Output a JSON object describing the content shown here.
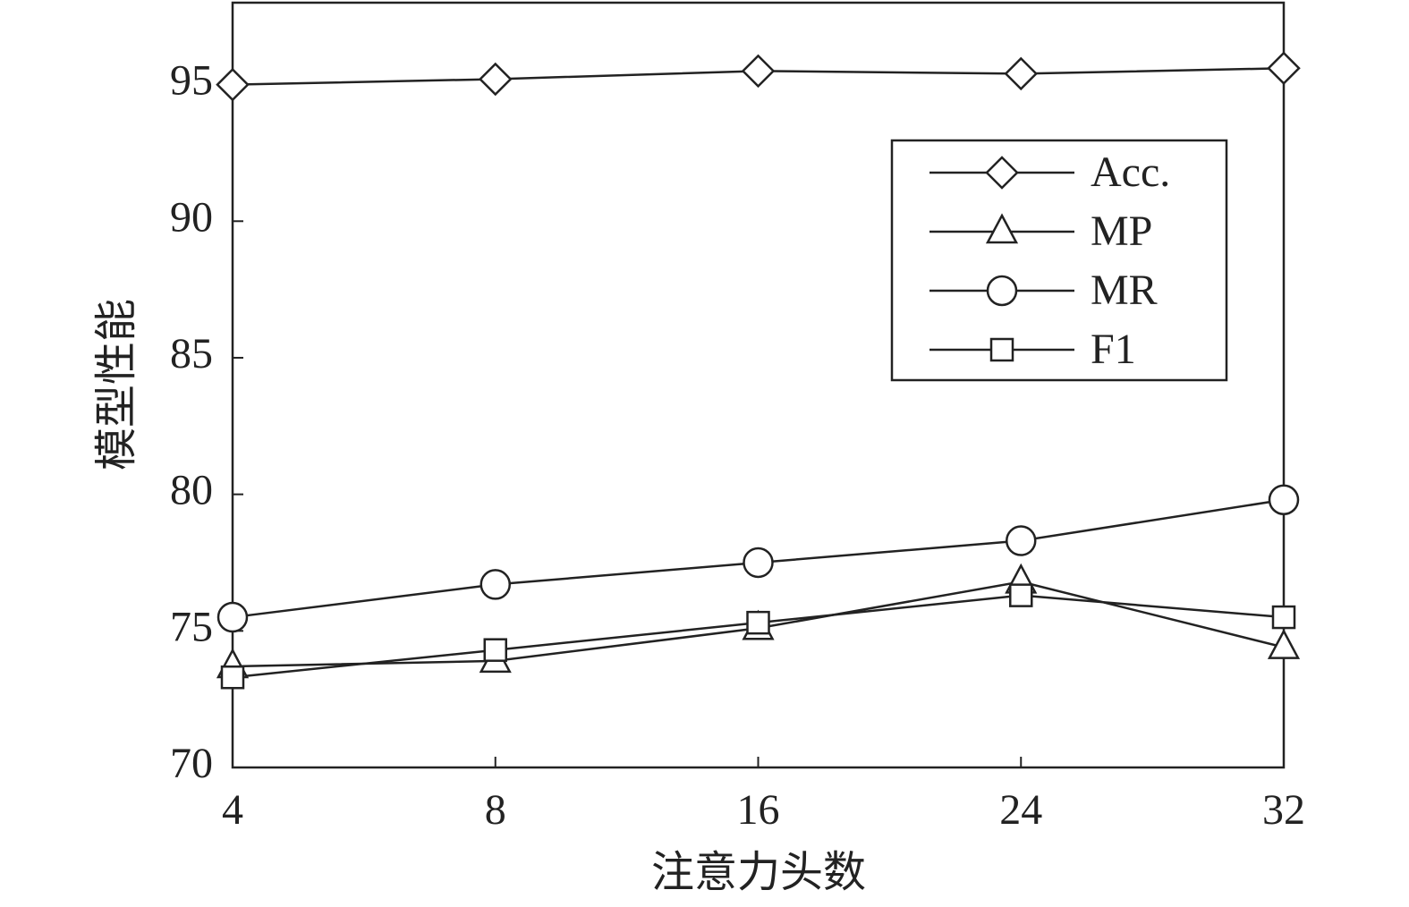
{
  "chart_data": {
    "type": "line",
    "x_label": "注意力头数",
    "y_label": "模型性能",
    "categories": [
      "4",
      "8",
      "16",
      "24",
      "32"
    ],
    "series": [
      {
        "name": "Acc.",
        "color": "#222222",
        "marker": "diamond",
        "values": [
          95.0,
          95.2,
          95.5,
          95.4,
          95.6
        ]
      },
      {
        "name": "MP",
        "color": "#222222",
        "marker": "triangle",
        "values": [
          73.7,
          73.9,
          75.1,
          76.8,
          74.4
        ]
      },
      {
        "name": "MR",
        "color": "#222222",
        "marker": "circle",
        "values": [
          75.5,
          76.7,
          77.5,
          78.3,
          79.8
        ]
      },
      {
        "name": "F1",
        "color": "#222222",
        "marker": "square",
        "values": [
          73.3,
          74.3,
          75.3,
          76.3,
          75.5
        ]
      }
    ],
    "ylim": [
      70,
      98
    ],
    "yticks": [
      70,
      75,
      80,
      85,
      90,
      95
    ],
    "legend": "upper right",
    "grid": false
  }
}
